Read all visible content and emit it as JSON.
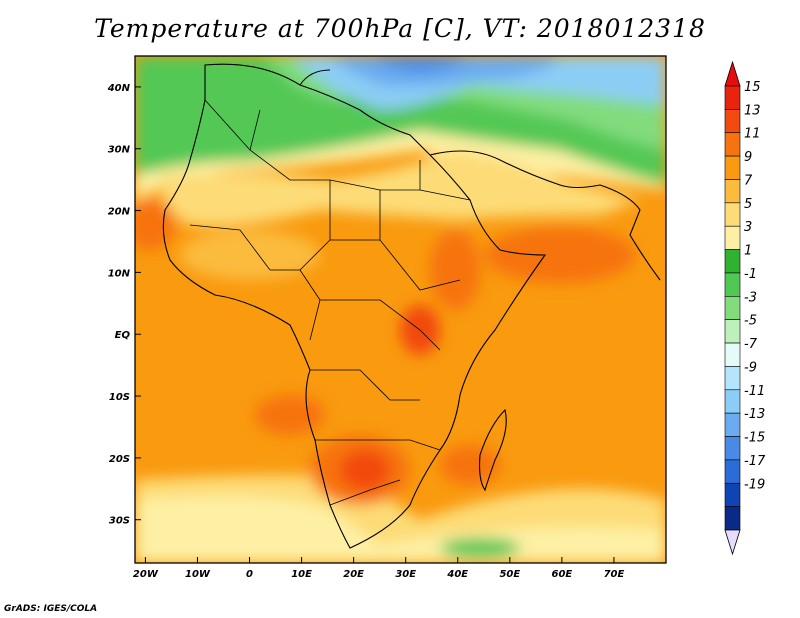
{
  "title": "Temperature at 700hPa [C], VT: 2018012318",
  "credit": "GrADS: IGES/COLA",
  "map": {
    "lon_range": [
      -22,
      80
    ],
    "lat_range": [
      -37,
      45
    ],
    "x_ticks": [
      {
        "lon": -20,
        "label": "20W"
      },
      {
        "lon": -10,
        "label": "10W"
      },
      {
        "lon": 0,
        "label": "0"
      },
      {
        "lon": 10,
        "label": "10E"
      },
      {
        "lon": 20,
        "label": "20E"
      },
      {
        "lon": 30,
        "label": "30E"
      },
      {
        "lon": 40,
        "label": "40E"
      },
      {
        "lon": 50,
        "label": "50E"
      },
      {
        "lon": 60,
        "label": "60E"
      },
      {
        "lon": 70,
        "label": "70E"
      }
    ],
    "y_ticks": [
      {
        "lat": 40,
        "label": "40N"
      },
      {
        "lat": 30,
        "label": "30N"
      },
      {
        "lat": 20,
        "label": "20N"
      },
      {
        "lat": 10,
        "label": "10N"
      },
      {
        "lat": 0,
        "label": "EQ"
      },
      {
        "lat": -10,
        "label": "10S"
      },
      {
        "lat": -20,
        "label": "20S"
      },
      {
        "lat": -30,
        "label": "30S"
      }
    ]
  },
  "colorbar": {
    "levels": [
      "15",
      "13",
      "11",
      "9",
      "7",
      "5",
      "3",
      "1",
      "-1",
      "-3",
      "-5",
      "-7",
      "-9",
      "-11",
      "-13",
      "-15",
      "-17",
      "-19"
    ],
    "colors": [
      "#e8250c",
      "#f24a0f",
      "#f7730f",
      "#f99a0f",
      "#fbbb3c",
      "#fddc77",
      "#fdf0a4",
      "#2fb22f",
      "#52c854",
      "#82dc7e",
      "#bdf0bb",
      "#e5fbf9",
      "#b4e5fb",
      "#8ccdf5",
      "#6aacef",
      "#4a8ae6",
      "#2a6cd8",
      "#1044b5",
      "#0a2a88"
    ],
    "top_arrow_color": "#e80c0c",
    "bottom_arrow_color": "#e6dcff"
  }
}
